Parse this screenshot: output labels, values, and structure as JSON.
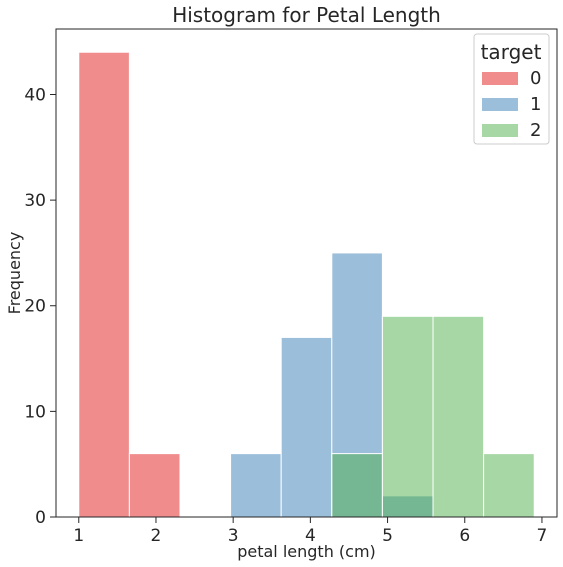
{
  "chart_data": {
    "type": "histogram",
    "title": "Histogram for Petal Length",
    "xlabel": "petal length (cm)",
    "ylabel": "Frequency",
    "xlim": [
      0.705,
      7.195
    ],
    "ylim": [
      0,
      46.2
    ],
    "x_ticks": [
      1,
      2,
      3,
      4,
      5,
      6,
      7
    ],
    "y_ticks": [
      0,
      10,
      20,
      30,
      40
    ],
    "bin_edges": [
      1.0,
      1.6556,
      2.3111,
      2.9667,
      3.6222,
      4.2778,
      4.9333,
      5.5889,
      6.2444,
      6.9
    ],
    "legend": {
      "title": "target",
      "position": "top-right"
    },
    "grid": false,
    "series": [
      {
        "name": "0",
        "color": "#e41a1c",
        "counts": [
          44,
          6,
          0,
          0,
          0,
          0,
          0,
          0,
          0
        ]
      },
      {
        "name": "1",
        "color": "#377eb8",
        "counts": [
          0,
          0,
          0,
          6,
          17,
          25,
          2,
          0,
          0
        ]
      },
      {
        "name": "2",
        "color": "#4daf4a",
        "counts": [
          0,
          0,
          0,
          0,
          0,
          6,
          19,
          19,
          6
        ]
      }
    ]
  }
}
